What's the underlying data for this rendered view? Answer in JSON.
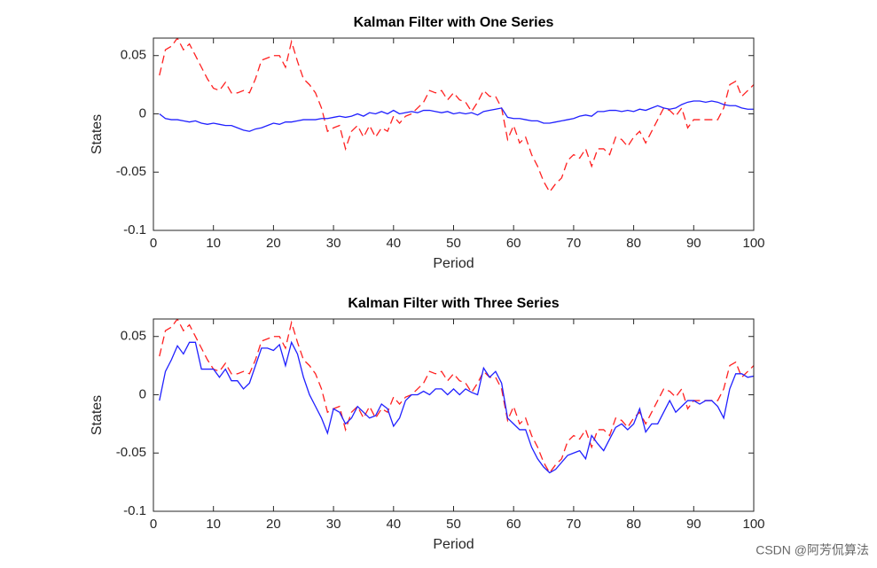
{
  "chart_data": [
    {
      "type": "line",
      "title": "Kalman Filter with One Series",
      "xlabel": "Period",
      "ylabel": "States",
      "x": [
        1,
        2,
        3,
        4,
        5,
        6,
        7,
        8,
        9,
        10,
        11,
        12,
        13,
        14,
        15,
        16,
        17,
        18,
        19,
        20,
        21,
        22,
        23,
        24,
        25,
        26,
        27,
        28,
        29,
        30,
        31,
        32,
        33,
        34,
        35,
        36,
        37,
        38,
        39,
        40,
        41,
        42,
        43,
        44,
        45,
        46,
        47,
        48,
        49,
        50,
        51,
        52,
        53,
        54,
        55,
        56,
        57,
        58,
        59,
        60,
        61,
        62,
        63,
        64,
        65,
        66,
        67,
        68,
        69,
        70,
        71,
        72,
        73,
        74,
        75,
        76,
        77,
        78,
        79,
        80,
        81,
        82,
        83,
        84,
        85,
        86,
        87,
        88,
        89,
        90,
        91,
        92,
        93,
        94,
        95,
        96,
        97,
        98,
        99,
        100
      ],
      "xlim": [
        0,
        100
      ],
      "xticks": [
        0,
        10,
        20,
        30,
        40,
        50,
        60,
        70,
        80,
        90,
        100
      ],
      "ylim": [
        -0.1,
        0.065
      ],
      "yticks": [
        -0.1,
        -0.05,
        0,
        0.05
      ],
      "series": [
        {
          "color": "#ff2020",
          "style": "dashed",
          "values": [
            0.033,
            0.055,
            0.058,
            0.065,
            0.055,
            0.06,
            0.05,
            0.04,
            0.03,
            0.022,
            0.02,
            0.027,
            0.018,
            0.018,
            0.02,
            0.018,
            0.03,
            0.046,
            0.048,
            0.05,
            0.05,
            0.04,
            0.062,
            0.045,
            0.03,
            0.025,
            0.018,
            0.005,
            -0.015,
            -0.012,
            -0.01,
            -0.03,
            -0.015,
            -0.01,
            -0.02,
            -0.01,
            -0.02,
            -0.012,
            -0.015,
            -0.002,
            -0.008,
            -0.002,
            0.0,
            0.005,
            0.01,
            0.02,
            0.018,
            0.02,
            0.012,
            0.018,
            0.012,
            0.01,
            0.002,
            0.01,
            0.02,
            0.015,
            0.015,
            0.005,
            -0.022,
            -0.01,
            -0.025,
            -0.02,
            -0.035,
            -0.045,
            -0.058,
            -0.067,
            -0.06,
            -0.055,
            -0.04,
            -0.035,
            -0.038,
            -0.03,
            -0.045,
            -0.03,
            -0.03,
            -0.035,
            -0.02,
            -0.022,
            -0.028,
            -0.02,
            -0.015,
            -0.025,
            -0.015,
            -0.005,
            0.005,
            0.003,
            -0.002,
            0.005,
            -0.012,
            -0.005,
            -0.005,
            -0.005,
            -0.005,
            -0.005,
            0.005,
            0.025,
            0.028,
            0.015,
            0.02,
            0.025
          ]
        },
        {
          "color": "#2020ff",
          "style": "solid",
          "values": [
            0,
            -0.004,
            -0.005,
            -0.005,
            -0.006,
            -0.007,
            -0.006,
            -0.008,
            -0.009,
            -0.008,
            -0.009,
            -0.01,
            -0.01,
            -0.012,
            -0.014,
            -0.015,
            -0.013,
            -0.012,
            -0.01,
            -0.008,
            -0.009,
            -0.007,
            -0.007,
            -0.006,
            -0.005,
            -0.005,
            -0.005,
            -0.004,
            -0.004,
            -0.003,
            -0.002,
            -0.003,
            -0.002,
            0,
            -0.002,
            0.001,
            0,
            0.002,
            0,
            0.003,
            0,
            0.001,
            0.002,
            0.001,
            0.003,
            0.003,
            0.002,
            0.001,
            0.002,
            0,
            0.001,
            0,
            0.001,
            -0.001,
            0.002,
            0.003,
            0.004,
            0.005,
            -0.003,
            -0.004,
            -0.004,
            -0.005,
            -0.006,
            -0.006,
            -0.008,
            -0.008,
            -0.007,
            -0.006,
            -0.005,
            -0.004,
            -0.002,
            -0.001,
            -0.002,
            0.002,
            0.002,
            0.003,
            0.003,
            0.002,
            0.003,
            0.002,
            0.004,
            0.003,
            0.005,
            0.007,
            0.005,
            0.004,
            0.005,
            0.008,
            0.01,
            0.011,
            0.011,
            0.01,
            0.011,
            0.01,
            0.008,
            0.007,
            0.007,
            0.005,
            0.004,
            0.004
          ]
        }
      ]
    },
    {
      "type": "line",
      "title": "Kalman Filter with Three Series",
      "xlabel": "Period",
      "ylabel": "States",
      "x": [
        1,
        2,
        3,
        4,
        5,
        6,
        7,
        8,
        9,
        10,
        11,
        12,
        13,
        14,
        15,
        16,
        17,
        18,
        19,
        20,
        21,
        22,
        23,
        24,
        25,
        26,
        27,
        28,
        29,
        30,
        31,
        32,
        33,
        34,
        35,
        36,
        37,
        38,
        39,
        40,
        41,
        42,
        43,
        44,
        45,
        46,
        47,
        48,
        49,
        50,
        51,
        52,
        53,
        54,
        55,
        56,
        57,
        58,
        59,
        60,
        61,
        62,
        63,
        64,
        65,
        66,
        67,
        68,
        69,
        70,
        71,
        72,
        73,
        74,
        75,
        76,
        77,
        78,
        79,
        80,
        81,
        82,
        83,
        84,
        85,
        86,
        87,
        88,
        89,
        90,
        91,
        92,
        93,
        94,
        95,
        96,
        97,
        98,
        99,
        100
      ],
      "xlim": [
        0,
        100
      ],
      "xticks": [
        0,
        10,
        20,
        30,
        40,
        50,
        60,
        70,
        80,
        90,
        100
      ],
      "ylim": [
        -0.1,
        0.065
      ],
      "yticks": [
        -0.1,
        -0.05,
        0,
        0.05
      ],
      "series": [
        {
          "color": "#ff2020",
          "style": "dashed",
          "values": [
            0.033,
            0.055,
            0.058,
            0.065,
            0.055,
            0.06,
            0.05,
            0.04,
            0.03,
            0.022,
            0.02,
            0.027,
            0.018,
            0.018,
            0.02,
            0.018,
            0.03,
            0.046,
            0.048,
            0.05,
            0.05,
            0.04,
            0.062,
            0.045,
            0.03,
            0.025,
            0.018,
            0.005,
            -0.015,
            -0.012,
            -0.01,
            -0.03,
            -0.015,
            -0.01,
            -0.02,
            -0.01,
            -0.02,
            -0.012,
            -0.015,
            -0.002,
            -0.008,
            -0.002,
            0.0,
            0.005,
            0.01,
            0.02,
            0.018,
            0.02,
            0.012,
            0.018,
            0.012,
            0.01,
            0.002,
            0.01,
            0.02,
            0.015,
            0.015,
            0.005,
            -0.022,
            -0.01,
            -0.025,
            -0.02,
            -0.035,
            -0.045,
            -0.058,
            -0.067,
            -0.06,
            -0.055,
            -0.04,
            -0.035,
            -0.038,
            -0.03,
            -0.045,
            -0.03,
            -0.03,
            -0.035,
            -0.02,
            -0.022,
            -0.028,
            -0.02,
            -0.015,
            -0.025,
            -0.015,
            -0.005,
            0.005,
            0.003,
            -0.002,
            0.005,
            -0.012,
            -0.005,
            -0.005,
            -0.005,
            -0.005,
            -0.005,
            0.005,
            0.025,
            0.028,
            0.015,
            0.02,
            0.025
          ]
        },
        {
          "color": "#2020ff",
          "style": "solid",
          "values": [
            -0.005,
            0.02,
            0.03,
            0.042,
            0.035,
            0.045,
            0.045,
            0.022,
            0.022,
            0.022,
            0.015,
            0.022,
            0.012,
            0.012,
            0.005,
            0.01,
            0.025,
            0.04,
            0.04,
            0.038,
            0.043,
            0.025,
            0.045,
            0.035,
            0.015,
            0.0,
            -0.01,
            -0.02,
            -0.033,
            -0.012,
            -0.015,
            -0.025,
            -0.02,
            -0.01,
            -0.015,
            -0.02,
            -0.018,
            -0.008,
            -0.012,
            -0.027,
            -0.02,
            -0.005,
            0.0,
            0.0,
            0.003,
            0.0,
            0.005,
            0.005,
            0.0,
            0.005,
            0.0,
            0.005,
            0.002,
            0.0,
            0.023,
            0.015,
            0.02,
            0.01,
            -0.02,
            -0.025,
            -0.03,
            -0.03,
            -0.045,
            -0.055,
            -0.062,
            -0.067,
            -0.064,
            -0.058,
            -0.052,
            -0.05,
            -0.048,
            -0.055,
            -0.035,
            -0.042,
            -0.048,
            -0.038,
            -0.028,
            -0.025,
            -0.03,
            -0.025,
            -0.012,
            -0.032,
            -0.025,
            -0.025,
            -0.015,
            -0.005,
            -0.015,
            -0.01,
            -0.005,
            -0.005,
            -0.008,
            -0.005,
            -0.005,
            -0.01,
            -0.02,
            0.005,
            0.018,
            0.018,
            0.015,
            0.016
          ]
        }
      ]
    }
  ],
  "watermark": "CSDN @阿芳侃算法"
}
